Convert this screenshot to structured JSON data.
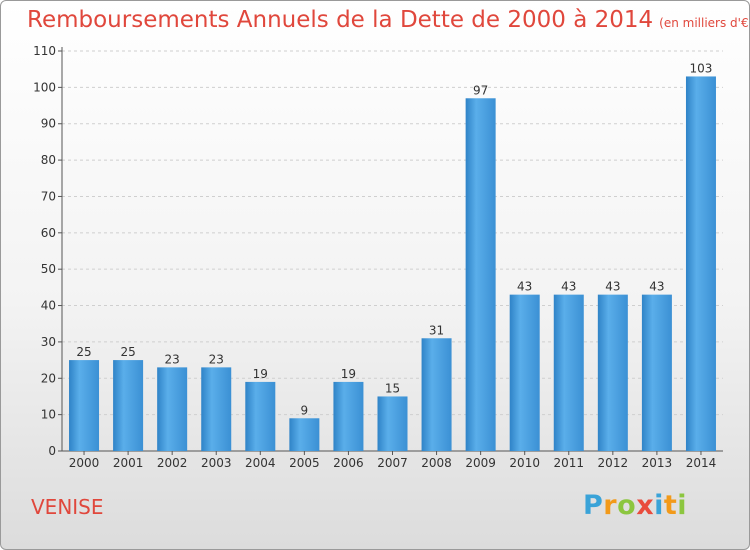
{
  "chart_data": {
    "type": "bar",
    "title": "Remboursements Annuels de la Dette de 2000 à 2014",
    "subtitle": "(en milliers d'€)",
    "categories": [
      "2000",
      "2001",
      "2002",
      "2003",
      "2004",
      "2005",
      "2006",
      "2007",
      "2008",
      "2009",
      "2010",
      "2011",
      "2012",
      "2013",
      "2014"
    ],
    "values": [
      25,
      25,
      23,
      23,
      19,
      9,
      19,
      15,
      31,
      97,
      43,
      43,
      43,
      43,
      103
    ],
    "yticks": [
      0,
      10,
      20,
      30,
      40,
      50,
      60,
      70,
      80,
      90,
      100,
      110
    ],
    "ylim": [
      0,
      110
    ],
    "grid": true,
    "bar_color": "#4a9fdf"
  },
  "footer": {
    "commune": "VENISE",
    "logo_letters": [
      "P",
      "r",
      "o",
      "x",
      "i",
      "t",
      "i"
    ]
  }
}
